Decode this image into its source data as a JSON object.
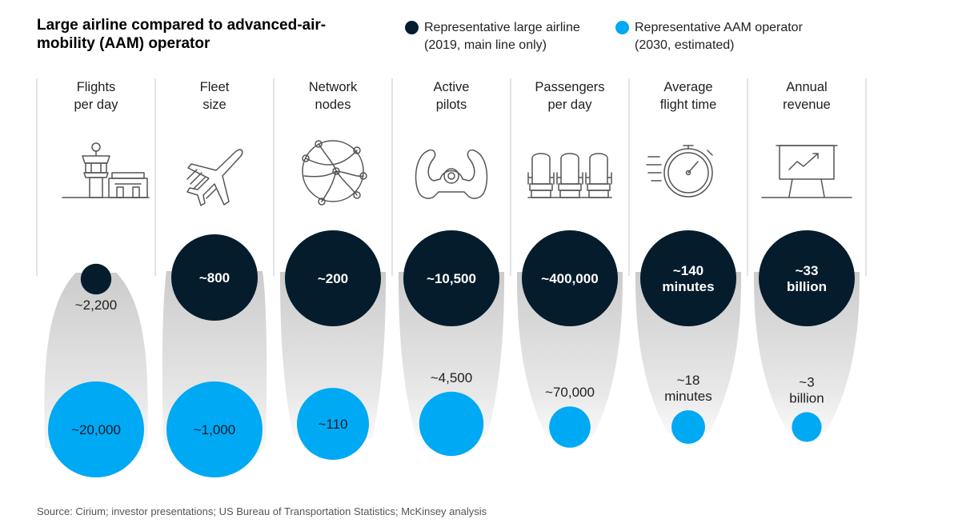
{
  "title": "Large airline compared to advanced-air-mobility (AAM) operator",
  "legend": [
    {
      "line1": "Representative large airline",
      "line2": "(2019, main line only)",
      "color": "#051c2c"
    },
    {
      "line1": "Representative AAM operator",
      "line2": "(2030, estimated)",
      "color": "#00a9f4"
    }
  ],
  "chart_data": {
    "type": "bubble-comparison",
    "series": [
      {
        "name": "Representative large airline (2019, main line only)",
        "color": "#051c2c"
      },
      {
        "name": "Representative AAM operator (2030, estimated)",
        "color": "#00a9f4"
      }
    ],
    "categories": [
      {
        "lines": [
          "Flights",
          "per day"
        ],
        "icon": "control-tower-icon",
        "airline": "~2,200",
        "aam": "~20,000",
        "airline_value": 2200,
        "aam_value": 20000,
        "airline_size": 0.32,
        "aam_size": 1.0
      },
      {
        "lines": [
          "Fleet",
          "size"
        ],
        "icon": "airplane-icon",
        "airline": "~800",
        "aam": "~1,000",
        "airline_value": 800,
        "aam_value": 1000,
        "airline_size": 0.9,
        "aam_size": 1.0
      },
      {
        "lines": [
          "Network",
          "nodes"
        ],
        "icon": "network-globe-icon",
        "airline": "~200",
        "aam": "~110",
        "airline_value": 200,
        "aam_value": 110,
        "airline_size": 1.0,
        "aam_size": 0.75
      },
      {
        "lines": [
          "Active",
          "pilots"
        ],
        "icon": "yoke-icon",
        "airline": "~10,500",
        "aam": "~4,500",
        "airline_value": 10500,
        "aam_value": 4500,
        "airline_size": 1.0,
        "aam_size": 0.67
      },
      {
        "lines": [
          "Passengers",
          "per day"
        ],
        "icon": "seats-icon",
        "airline": "~400,000",
        "aam": "~70,000",
        "airline_value": 400000,
        "aam_value": 70000,
        "airline_size": 1.0,
        "aam_size": 0.43
      },
      {
        "lines": [
          "Average",
          "flight time"
        ],
        "icon": "stopwatch-icon",
        "airline": "~140|minutes",
        "aam": "~18|minutes",
        "airline_value": 140,
        "aam_value": 18,
        "airline_size": 1.0,
        "aam_size": 0.35
      },
      {
        "lines": [
          "Annual",
          "revenue"
        ],
        "icon": "revenue-chart-icon",
        "airline": "~33|billion",
        "aam": "~3|billion",
        "airline_value": 33,
        "aam_value": 3,
        "airline_size": 1.0,
        "aam_size": 0.31
      }
    ]
  },
  "source": "Source: Cirium; investor presentations; US Bureau of Transportation Statistics; McKinsey analysis"
}
